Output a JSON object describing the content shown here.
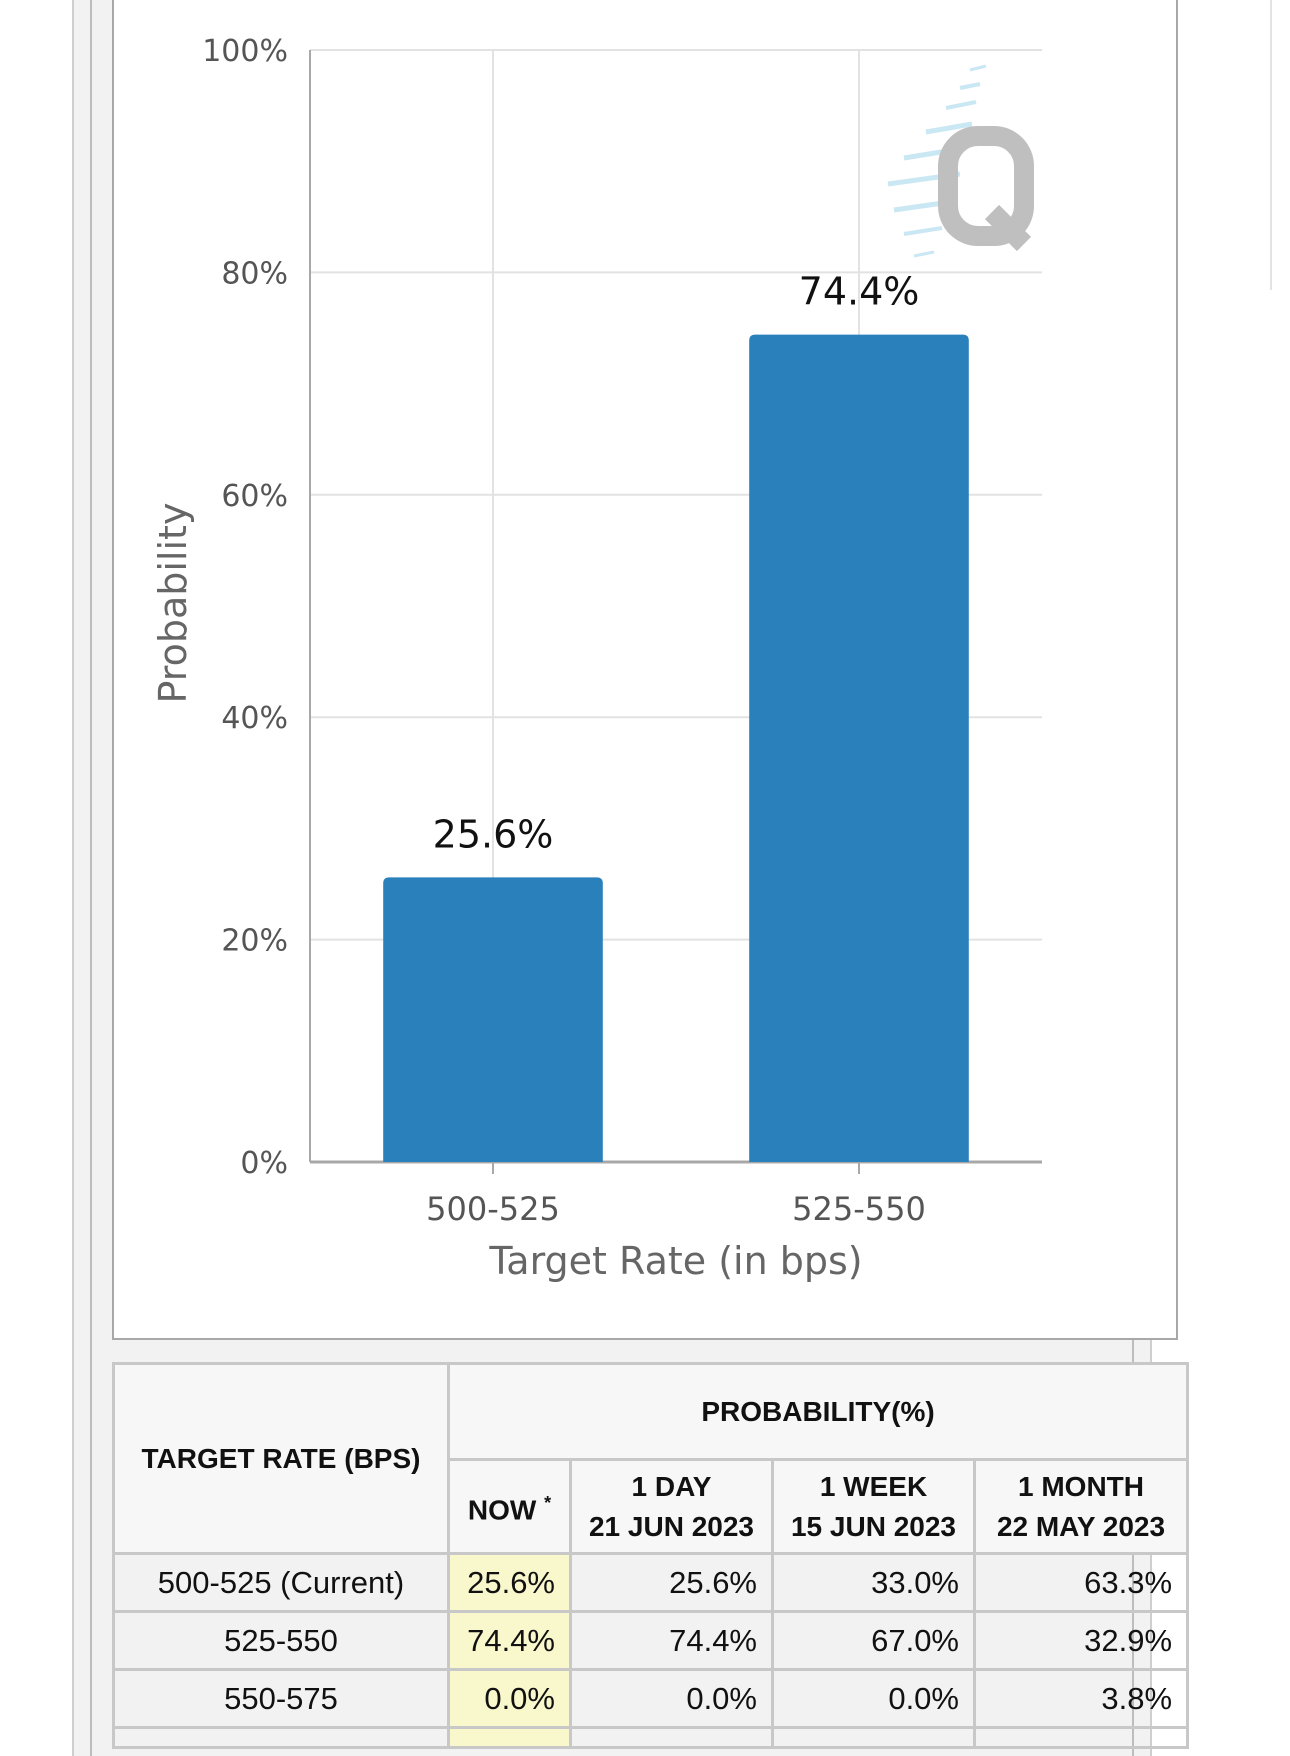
{
  "chart_data": {
    "type": "bar",
    "categories": [
      "500-525",
      "525-550"
    ],
    "values": [
      25.6,
      74.4
    ],
    "value_labels": [
      "25.6%",
      "74.4%"
    ],
    "xlabel": "Target Rate (in bps)",
    "ylabel": "Probability",
    "ylim": [
      0,
      100
    ],
    "y_ticks": [
      0,
      20,
      40,
      60,
      80,
      100
    ],
    "y_tick_labels": [
      "0%",
      "20%",
      "40%",
      "60%",
      "80%",
      "100%"
    ],
    "grid": true,
    "bar_color": "#2a80bb"
  },
  "table": {
    "header_target": "TARGET RATE (BPS)",
    "header_probability": "PROBABILITY(%)",
    "col_now": "NOW",
    "col_now_mark": "*",
    "cols": [
      {
        "line1": "1 DAY",
        "line2": "21 JUN 2023"
      },
      {
        "line1": "1 WEEK",
        "line2": "15 JUN 2023"
      },
      {
        "line1": "1 MONTH",
        "line2": "22 MAY 2023"
      }
    ],
    "rows": [
      {
        "rate": "500-525 (Current)",
        "now": "25.6%",
        "day": "25.6%",
        "week": "33.0%",
        "month": "63.3%"
      },
      {
        "rate": "525-550",
        "now": "74.4%",
        "day": "74.4%",
        "week": "67.0%",
        "month": "32.9%"
      },
      {
        "rate": "550-575",
        "now": "0.0%",
        "day": "0.0%",
        "week": "0.0%",
        "month": "3.8%"
      }
    ],
    "now_highlight_color": "#f9f7cc"
  }
}
